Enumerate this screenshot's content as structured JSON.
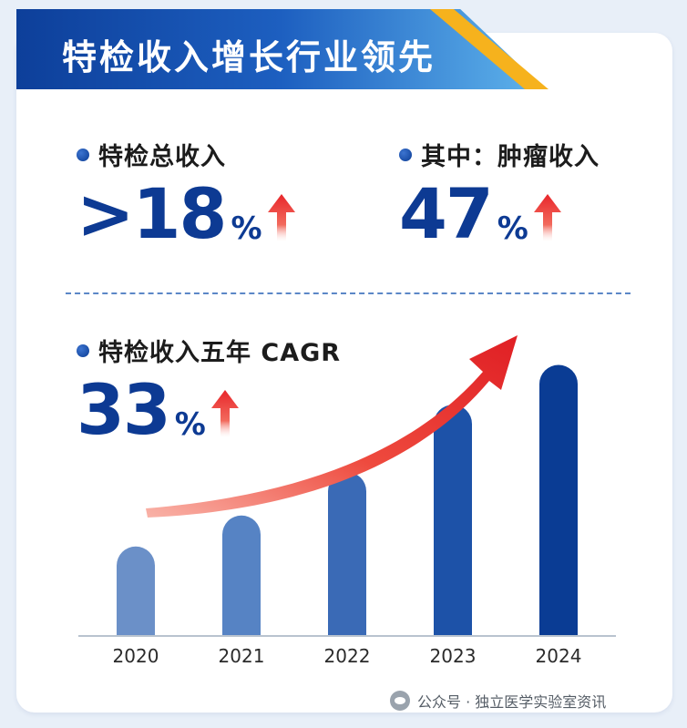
{
  "header": {
    "title": "特检收入增长行业领先"
  },
  "stats": {
    "total": {
      "label": "特检总收入",
      "value": ">18",
      "unit": "%"
    },
    "tumor": {
      "label": "其中：肿瘤收入",
      "value": "47",
      "unit": "%"
    },
    "cagr": {
      "label": "特检收入五年 CAGR",
      "value": "33",
      "unit": "%"
    }
  },
  "watermark": {
    "text": "公众号 · 独立医学实验室资讯"
  },
  "colors": {
    "brand_blue": "#0d3a93",
    "accent_red": "#e8262a",
    "accent_yellow": "#f6b21d"
  },
  "icons": [
    "up-arrow-icon",
    "trend-arrow-icon",
    "wechat-icon"
  ],
  "chart_data": {
    "type": "bar",
    "categories": [
      "2020",
      "2021",
      "2022",
      "2023",
      "2024"
    ],
    "values": [
      1.0,
      1.35,
      1.84,
      2.6,
      3.05
    ],
    "bar_colors": [
      "#6b90c8",
      "#5683c4",
      "#3a6ab6",
      "#1d52a8",
      "#0a3c94"
    ],
    "ylim": [
      0,
      3.6
    ],
    "xlabel": "",
    "ylabel": "",
    "grid": false,
    "trend_arrow": true
  }
}
